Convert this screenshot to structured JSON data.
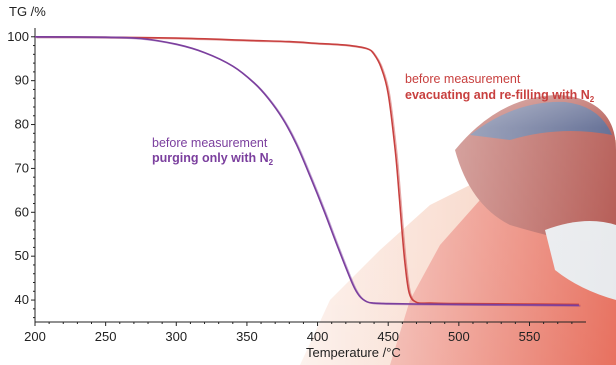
{
  "chart_data": {
    "type": "line",
    "ylabel": "TG /%",
    "xlabel": "Temperature /°C",
    "xlim": [
      200,
      590
    ],
    "ylim": [
      35,
      102
    ],
    "x_ticks": [
      200,
      250,
      300,
      350,
      400,
      450,
      500,
      550
    ],
    "y_ticks": [
      40,
      50,
      60,
      70,
      80,
      90,
      100
    ],
    "series": [
      {
        "color": "#c8403f",
        "x": [
          200,
          250,
          300,
          350,
          380,
          400,
          420,
          435,
          440,
          445,
          450,
          455,
          458,
          460,
          462,
          465,
          470,
          480,
          500,
          550,
          585
        ],
        "y": [
          100,
          99.9,
          99.7,
          99.2,
          98.9,
          98.5,
          98.1,
          97.3,
          96.0,
          93.0,
          87.0,
          74.0,
          63.0,
          55.0,
          48.0,
          41.5,
          39.5,
          39.3,
          39.2,
          39.1,
          39.0
        ]
      },
      {
        "color": "#7b3f9e",
        "x": [
          200,
          250,
          275,
          300,
          320,
          340,
          355,
          365,
          375,
          385,
          395,
          405,
          415,
          425,
          430,
          435,
          440,
          450,
          470,
          500,
          550,
          585
        ],
        "y": [
          100,
          99.9,
          99.6,
          98.3,
          96.4,
          93.3,
          89.5,
          86.0,
          81.5,
          75.5,
          68.0,
          60.0,
          51.5,
          43.5,
          40.8,
          39.6,
          39.3,
          39.2,
          39.1,
          39.0,
          38.9,
          38.8
        ]
      }
    ],
    "annotations": [
      {
        "lines": [
          "before measurement",
          "evacuating and re-filling with N"
        ],
        "subscript": "2",
        "color": "#c8403f"
      },
      {
        "lines": [
          "before measurement",
          "purging only with N"
        ],
        "subscript": "2",
        "color": "#7b3f9e"
      }
    ],
    "background": {
      "colors": [
        "#f2b59a",
        "#e0452e",
        "#9a1f16",
        "#1f2f66",
        "#dfe2e6"
      ]
    }
  }
}
